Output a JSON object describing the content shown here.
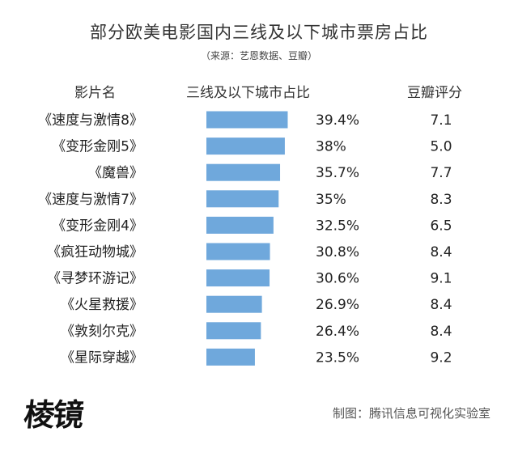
{
  "title": "部分欧美电影国内三线及以下城市票房占比",
  "source": "（来源：艺恩数据、豆瓣）",
  "headers": {
    "film": "影片名",
    "share": "三线及以下城市占比",
    "rating": "豆瓣评分"
  },
  "colors": {
    "bar": "#6fa8dc"
  },
  "chart_data": {
    "type": "bar",
    "orientation": "horizontal",
    "title": "部分欧美电影国内三线及以下城市票房占比",
    "categories": [
      "《速度与激情8》",
      "《变形金刚5》",
      "《魔兽》",
      "《速度与激情7》",
      "《变形金刚4》",
      "《疯狂动物城》",
      "《寻梦环游记》",
      "《火星救援》",
      "《敦刻尔克》",
      "《星际穿越》"
    ],
    "values": [
      39.4,
      38,
      35.7,
      35,
      32.5,
      30.8,
      30.6,
      26.9,
      26.4,
      23.5
    ],
    "value_labels": [
      "39.4%",
      "38%",
      "35.7%",
      "35%",
      "32.5%",
      "30.8%",
      "30.6%",
      "26.9%",
      "26.4%",
      "23.5%"
    ],
    "ratings": [
      "7.1",
      "5.0",
      "7.7",
      "8.3",
      "6.5",
      "8.4",
      "9.1",
      "8.4",
      "8.4",
      "9.2"
    ],
    "xlim": [
      0,
      40
    ]
  },
  "footer": {
    "logo": "棱镜",
    "credit": "制图：腾讯信息可视化实验室"
  }
}
